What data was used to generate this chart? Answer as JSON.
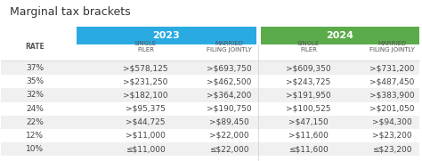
{
  "title": "Marginal tax brackets",
  "col_2023_color": "#29abe2",
  "col_2024_color": "#5bab4b",
  "header_text_color": "#ffffff",
  "subheader_color": "#555555",
  "rate_col_header": "RATE",
  "col_headers": [
    "SINGLE\nFILER",
    "MARRIED\nFILING JOINTLY",
    "SINGLE\nFILER",
    "MARRIED\nFILING JOINTLY"
  ],
  "year_headers": [
    "2023",
    "2024"
  ],
  "rates": [
    "37%",
    "35%",
    "32%",
    "24%",
    "22%",
    "12%",
    "10%"
  ],
  "data_2023_single": [
    ">$578,125",
    ">$231,250",
    ">$182,100",
    ">$95,375",
    ">$44,725",
    ">$11,000",
    "≤$11,000"
  ],
  "data_2023_married": [
    ">$693,750",
    ">$462,500",
    ">$364,200",
    ">$190,750",
    ">$89,450",
    ">$22,000",
    "≤$22,000"
  ],
  "data_2024_single": [
    ">$609,350",
    ">$243,725",
    ">$191,950",
    ">$100,525",
    ">$47,150",
    ">$11,600",
    "≤$11,600"
  ],
  "data_2024_married": [
    ">$731,200",
    ">$487,450",
    ">$383,900",
    ">$201,050",
    ">$94,300",
    ">$23,200",
    "≤$23,200"
  ],
  "bg_color": "#ffffff",
  "row_alt_color": "#f0f0f0",
  "separator_color": "#cccccc",
  "title_fontsize": 9,
  "header_fontsize": 7,
  "data_fontsize": 6.5
}
